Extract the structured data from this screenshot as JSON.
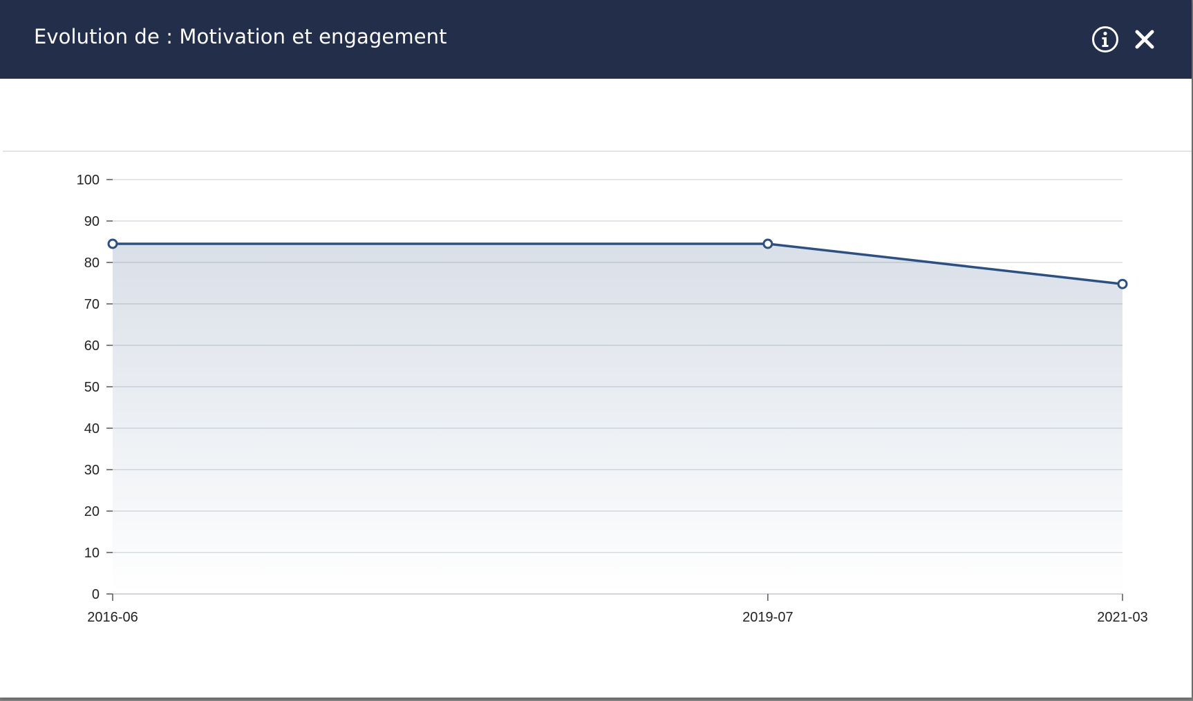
{
  "modal": {
    "title": "Evolution de : Motivation et engagement",
    "info_icon": "info-circle-icon",
    "close_icon": "close-x-icon"
  },
  "colors": {
    "header_bg": "#232e4a",
    "series_line": "#2e5080",
    "grid": "#d9dde3"
  },
  "chart_data": {
    "type": "area",
    "categories": [
      "2016-06",
      "2019-07",
      "2021-03"
    ],
    "x_dates": [
      "2016-06",
      "2019-07",
      "2021-03"
    ],
    "values": [
      84.5,
      84.5,
      74.8
    ],
    "title": "",
    "xlabel": "",
    "ylabel": "",
    "ylim": [
      0,
      100
    ],
    "yticks": [
      0,
      10,
      20,
      30,
      40,
      50,
      60,
      70,
      80,
      90,
      100
    ],
    "grid": true,
    "legend": "none"
  }
}
